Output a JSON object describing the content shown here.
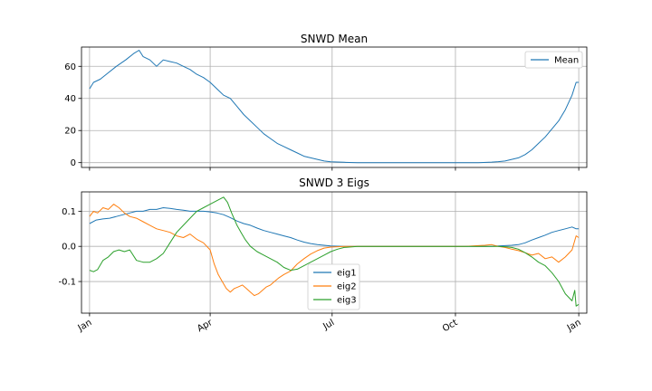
{
  "chart_data": [
    {
      "type": "line",
      "title": "SNWD Mean",
      "xlabel": "",
      "ylabel": "",
      "x_ticks": [
        "",
        "",
        "",
        "",
        ""
      ],
      "y_ticks": [
        0,
        20,
        40,
        60
      ],
      "ylim": [
        -3,
        72
      ],
      "grid": true,
      "legend_position": "upper right",
      "series": [
        {
          "name": "Mean",
          "color": "#1f77b4",
          "points": [
            [
              0,
              46
            ],
            [
              3,
              50
            ],
            [
              8,
              52
            ],
            [
              14,
              56
            ],
            [
              20,
              60
            ],
            [
              27,
              64
            ],
            [
              33,
              68
            ],
            [
              37,
              70
            ],
            [
              40,
              66
            ],
            [
              45,
              64
            ],
            [
              50,
              60
            ],
            [
              55,
              64
            ],
            [
              60,
              63
            ],
            [
              65,
              62
            ],
            [
              70,
              60
            ],
            [
              75,
              58
            ],
            [
              80,
              55
            ],
            [
              85,
              53
            ],
            [
              90,
              50
            ],
            [
              95,
              46
            ],
            [
              100,
              42
            ],
            [
              105,
              40
            ],
            [
              110,
              35
            ],
            [
              115,
              30
            ],
            [
              120,
              26
            ],
            [
              125,
              22
            ],
            [
              130,
              18
            ],
            [
              135,
              15
            ],
            [
              140,
              12
            ],
            [
              145,
              10
            ],
            [
              150,
              8
            ],
            [
              155,
              6
            ],
            [
              160,
              4
            ],
            [
              165,
              3
            ],
            [
              170,
              2
            ],
            [
              175,
              1
            ],
            [
              180,
              0.5
            ],
            [
              190,
              0.2
            ],
            [
              200,
              0
            ],
            [
              210,
              0
            ],
            [
              220,
              0
            ],
            [
              230,
              0
            ],
            [
              240,
              0
            ],
            [
              250,
              0
            ],
            [
              260,
              0
            ],
            [
              270,
              0
            ],
            [
              280,
              0
            ],
            [
              290,
              0
            ],
            [
              300,
              0.3
            ],
            [
              305,
              0.6
            ],
            [
              310,
              1
            ],
            [
              315,
              2
            ],
            [
              320,
              3
            ],
            [
              325,
              5
            ],
            [
              330,
              8
            ],
            [
              335,
              12
            ],
            [
              340,
              16
            ],
            [
              345,
              21
            ],
            [
              350,
              26
            ],
            [
              355,
              33
            ],
            [
              360,
              42
            ],
            [
              363,
              50
            ],
            [
              365,
              50
            ]
          ]
        }
      ]
    },
    {
      "type": "line",
      "title": "SNWD 3 Eigs",
      "xlabel": "",
      "ylabel": "",
      "x_ticks": [
        "Jan",
        "Apr",
        "Jul",
        "Oct",
        "Jan"
      ],
      "y_ticks": [
        -0.1,
        0.0,
        0.1
      ],
      "ylim": [
        -0.19,
        0.155
      ],
      "grid": true,
      "legend_position": "lower center",
      "series": [
        {
          "name": "eig1",
          "color": "#1f77b4",
          "points": [
            [
              0,
              0.065
            ],
            [
              5,
              0.075
            ],
            [
              10,
              0.078
            ],
            [
              15,
              0.08
            ],
            [
              20,
              0.085
            ],
            [
              25,
              0.09
            ],
            [
              30,
              0.095
            ],
            [
              35,
              0.1
            ],
            [
              40,
              0.1
            ],
            [
              45,
              0.105
            ],
            [
              50,
              0.105
            ],
            [
              55,
              0.11
            ],
            [
              60,
              0.108
            ],
            [
              65,
              0.105
            ],
            [
              70,
              0.103
            ],
            [
              75,
              0.1
            ],
            [
              80,
              0.1
            ],
            [
              85,
              0.1
            ],
            [
              90,
              0.098
            ],
            [
              95,
              0.095
            ],
            [
              100,
              0.09
            ],
            [
              105,
              0.082
            ],
            [
              110,
              0.072
            ],
            [
              115,
              0.065
            ],
            [
              120,
              0.06
            ],
            [
              125,
              0.052
            ],
            [
              130,
              0.045
            ],
            [
              135,
              0.04
            ],
            [
              140,
              0.035
            ],
            [
              145,
              0.03
            ],
            [
              150,
              0.025
            ],
            [
              155,
              0.018
            ],
            [
              160,
              0.012
            ],
            [
              165,
              0.008
            ],
            [
              170,
              0.005
            ],
            [
              175,
              0.003
            ],
            [
              180,
              0.001
            ],
            [
              190,
              0
            ],
            [
              200,
              0
            ],
            [
              210,
              0
            ],
            [
              220,
              0
            ],
            [
              230,
              0
            ],
            [
              240,
              0
            ],
            [
              250,
              0
            ],
            [
              260,
              0
            ],
            [
              270,
              0
            ],
            [
              280,
              0
            ],
            [
              290,
              0
            ],
            [
              300,
              0
            ],
            [
              305,
              0.001
            ],
            [
              310,
              0.002
            ],
            [
              315,
              0.003
            ],
            [
              320,
              0.005
            ],
            [
              325,
              0.01
            ],
            [
              330,
              0.018
            ],
            [
              335,
              0.025
            ],
            [
              340,
              0.032
            ],
            [
              345,
              0.04
            ],
            [
              350,
              0.045
            ],
            [
              355,
              0.05
            ],
            [
              360,
              0.055
            ],
            [
              363,
              0.05
            ],
            [
              365,
              0.05
            ]
          ]
        },
        {
          "name": "eig2",
          "color": "#ff7f0e",
          "points": [
            [
              0,
              0.085
            ],
            [
              3,
              0.1
            ],
            [
              6,
              0.095
            ],
            [
              10,
              0.11
            ],
            [
              14,
              0.105
            ],
            [
              18,
              0.12
            ],
            [
              22,
              0.11
            ],
            [
              26,
              0.095
            ],
            [
              30,
              0.085
            ],
            [
              35,
              0.08
            ],
            [
              40,
              0.07
            ],
            [
              45,
              0.06
            ],
            [
              50,
              0.05
            ],
            [
              55,
              0.045
            ],
            [
              60,
              0.04
            ],
            [
              65,
              0.03
            ],
            [
              70,
              0.025
            ],
            [
              75,
              0.035
            ],
            [
              80,
              0.02
            ],
            [
              85,
              0.01
            ],
            [
              90,
              -0.01
            ],
            [
              93,
              -0.05
            ],
            [
              96,
              -0.08
            ],
            [
              99,
              -0.1
            ],
            [
              102,
              -0.12
            ],
            [
              105,
              -0.13
            ],
            [
              108,
              -0.12
            ],
            [
              111,
              -0.115
            ],
            [
              114,
              -0.11
            ],
            [
              117,
              -0.12
            ],
            [
              120,
              -0.13
            ],
            [
              123,
              -0.14
            ],
            [
              126,
              -0.135
            ],
            [
              129,
              -0.125
            ],
            [
              132,
              -0.115
            ],
            [
              135,
              -0.11
            ],
            [
              138,
              -0.1
            ],
            [
              141,
              -0.09
            ],
            [
              145,
              -0.08
            ],
            [
              150,
              -0.07
            ],
            [
              155,
              -0.05
            ],
            [
              160,
              -0.035
            ],
            [
              165,
              -0.022
            ],
            [
              170,
              -0.012
            ],
            [
              175,
              -0.005
            ],
            [
              180,
              -0.002
            ],
            [
              190,
              0
            ],
            [
              200,
              0
            ],
            [
              210,
              0
            ],
            [
              220,
              0
            ],
            [
              230,
              0
            ],
            [
              240,
              0
            ],
            [
              250,
              0
            ],
            [
              260,
              0
            ],
            [
              270,
              0
            ],
            [
              280,
              0
            ],
            [
              290,
              0.002
            ],
            [
              295,
              0.003
            ],
            [
              300,
              0.005
            ],
            [
              305,
              0
            ],
            [
              310,
              -0.003
            ],
            [
              315,
              -0.008
            ],
            [
              320,
              -0.012
            ],
            [
              325,
              -0.018
            ],
            [
              330,
              -0.025
            ],
            [
              335,
              -0.02
            ],
            [
              340,
              -0.035
            ],
            [
              345,
              -0.03
            ],
            [
              350,
              -0.045
            ],
            [
              355,
              -0.03
            ],
            [
              360,
              -0.01
            ],
            [
              363,
              0.03
            ],
            [
              365,
              0.025
            ]
          ]
        },
        {
          "name": "eig3",
          "color": "#2ca02c",
          "points": [
            [
              0,
              -0.068
            ],
            [
              3,
              -0.072
            ],
            [
              6,
              -0.066
            ],
            [
              10,
              -0.04
            ],
            [
              14,
              -0.03
            ],
            [
              18,
              -0.015
            ],
            [
              22,
              -0.01
            ],
            [
              26,
              -0.015
            ],
            [
              30,
              -0.01
            ],
            [
              35,
              -0.04
            ],
            [
              40,
              -0.045
            ],
            [
              45,
              -0.045
            ],
            [
              50,
              -0.035
            ],
            [
              55,
              -0.02
            ],
            [
              60,
              0.01
            ],
            [
              65,
              0.04
            ],
            [
              70,
              0.06
            ],
            [
              75,
              0.08
            ],
            [
              80,
              0.1
            ],
            [
              85,
              0.11
            ],
            [
              90,
              0.12
            ],
            [
              95,
              0.13
            ],
            [
              100,
              0.14
            ],
            [
              103,
              0.125
            ],
            [
              106,
              0.095
            ],
            [
              110,
              0.06
            ],
            [
              113,
              0.04
            ],
            [
              116,
              0.02
            ],
            [
              120,
              0
            ],
            [
              125,
              -0.015
            ],
            [
              130,
              -0.025
            ],
            [
              135,
              -0.035
            ],
            [
              140,
              -0.045
            ],
            [
              145,
              -0.06
            ],
            [
              150,
              -0.068
            ],
            [
              155,
              -0.065
            ],
            [
              160,
              -0.055
            ],
            [
              165,
              -0.045
            ],
            [
              170,
              -0.035
            ],
            [
              175,
              -0.025
            ],
            [
              180,
              -0.015
            ],
            [
              185,
              -0.008
            ],
            [
              190,
              -0.003
            ],
            [
              200,
              0
            ],
            [
              210,
              0
            ],
            [
              220,
              0
            ],
            [
              230,
              0
            ],
            [
              240,
              0
            ],
            [
              250,
              0
            ],
            [
              260,
              0
            ],
            [
              270,
              0
            ],
            [
              280,
              0
            ],
            [
              290,
              0
            ],
            [
              300,
              0
            ],
            [
              305,
              0
            ],
            [
              310,
              -0.001
            ],
            [
              315,
              -0.003
            ],
            [
              320,
              -0.008
            ],
            [
              325,
              -0.018
            ],
            [
              330,
              -0.03
            ],
            [
              335,
              -0.045
            ],
            [
              340,
              -0.055
            ],
            [
              345,
              -0.075
            ],
            [
              350,
              -0.1
            ],
            [
              355,
              -0.135
            ],
            [
              360,
              -0.155
            ],
            [
              362,
              -0.125
            ],
            [
              363,
              -0.17
            ],
            [
              365,
              -0.165
            ]
          ]
        }
      ]
    }
  ]
}
